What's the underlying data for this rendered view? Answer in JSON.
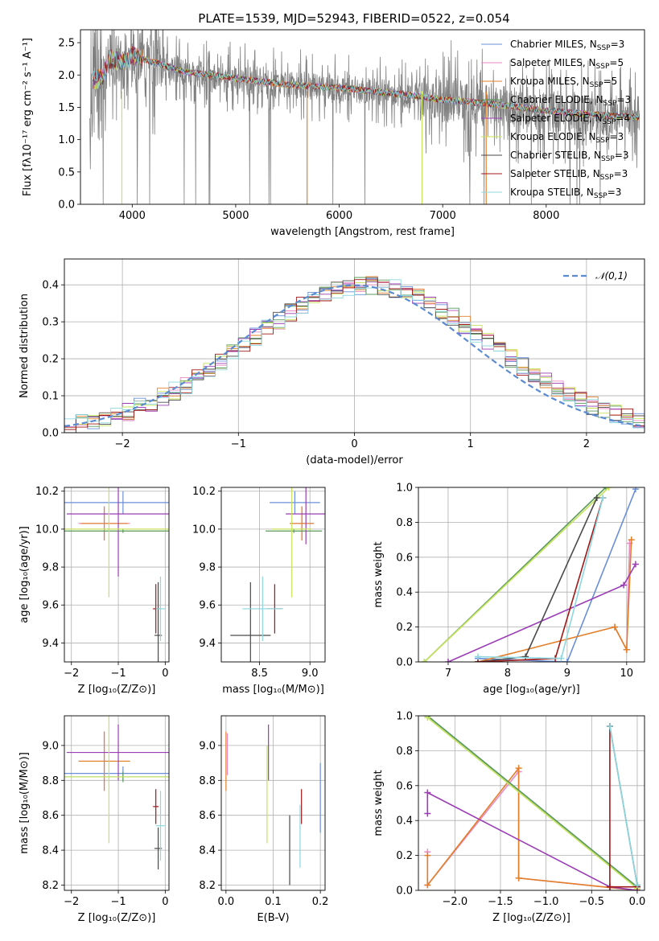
{
  "title": "PLATE=1539, MJD=52943, FIBERID=0522, z=0.054",
  "colors": {
    "Chabrier MILES": "#6a8fd8",
    "Salpeter MILES": "#e88ac7",
    "Kroupa MILES": "#e2802a",
    "Chabrier ELODIE": "#5a9a5a",
    "Salpeter ELODIE": "#9b3db5",
    "Kroupa ELODIE": "#c6e35a",
    "Chabrier STELIB": "#4a4a4a",
    "Salpeter STELIB": "#a01818",
    "Kroupa STELIB": "#8cd8e0",
    "data": "#808080",
    "normal": "#5b8bd0"
  },
  "chart_data": [
    {
      "id": "spectrum",
      "type": "line",
      "xlabel": "wavelength [Angstrom, rest frame]",
      "ylabel": "Flux [fλ10⁻¹⁷ erg cm⁻² s⁻¹ A⁻¹]",
      "xlim": [
        3500,
        8950
      ],
      "ylim": [
        0,
        2.7
      ],
      "xticks": [
        "4000",
        "5000",
        "6000",
        "7000",
        "8000"
      ],
      "yticks": [
        "0.0",
        "0.5",
        "1.0",
        "1.5",
        "2.0",
        "2.5"
      ],
      "legend": "right",
      "series": [
        {
          "name": "Chabrier MILES, N",
          "sub": "SSP",
          "suffix": "=3"
        },
        {
          "name": "Salpeter MILES, N",
          "sub": "SSP",
          "suffix": "=5"
        },
        {
          "name": "Kroupa MILES, N",
          "sub": "SSP",
          "suffix": "=5"
        },
        {
          "name": "Chabrier ELODIE, N",
          "sub": "SSP",
          "suffix": "=3"
        },
        {
          "name": "Salpeter ELODIE, N",
          "sub": "SSP",
          "suffix": "=4"
        },
        {
          "name": "Kroupa ELODIE, N",
          "sub": "SSP",
          "suffix": "=3"
        },
        {
          "name": "Chabrier STELIB, N",
          "sub": "SSP",
          "suffix": "=3"
        },
        {
          "name": "Salpeter STELIB, N",
          "sub": "SSP",
          "suffix": "=3"
        },
        {
          "name": "Kroupa STELIB, N",
          "sub": "SSP",
          "suffix": "=3"
        }
      ],
      "continuum": [
        [
          3600,
          1.9
        ],
        [
          3700,
          1.95
        ],
        [
          3800,
          2.25
        ],
        [
          3900,
          2.2
        ],
        [
          4000,
          2.3
        ],
        [
          4200,
          2.2
        ],
        [
          4500,
          2.05
        ],
        [
          5000,
          1.95
        ],
        [
          5500,
          1.85
        ],
        [
          6000,
          1.8
        ],
        [
          6500,
          1.72
        ],
        [
          7000,
          1.62
        ],
        [
          7500,
          1.55
        ],
        [
          8000,
          1.45
        ],
        [
          8500,
          1.38
        ],
        [
          8900,
          1.35
        ]
      ]
    },
    {
      "id": "residuals",
      "type": "bar",
      "xlabel": "(data-model)/error",
      "ylabel": "Normed distribution",
      "xlim": [
        -2.5,
        2.5
      ],
      "ylim": [
        0,
        0.47
      ],
      "xticks": [
        "−2",
        "−1",
        "0",
        "1",
        "2"
      ],
      "yticks": [
        "0.0",
        "0.1",
        "0.2",
        "0.3",
        "0.4"
      ],
      "legend_label": "𝒩(0,1)"
    },
    {
      "id": "age_vs_Z",
      "type": "scatter",
      "xlabel": "Z [log₁₀(Z/Z⊙)]",
      "ylabel": "age  [log₁₀(age/yr)]",
      "xlim": [
        -2.15,
        0.08
      ],
      "ylim": [
        9.3,
        10.22
      ],
      "xticks": [
        "−2",
        "−1",
        "0"
      ],
      "yticks": [
        "9.4",
        "9.6",
        "9.8",
        "10.0",
        "10.2"
      ]
    },
    {
      "id": "age_vs_mass",
      "type": "scatter",
      "xlabel": "mass [log₁₀(M/M⊙)]",
      "xlim": [
        8.12,
        9.15
      ],
      "ylim": [
        9.3,
        10.22
      ],
      "xticks": [
        "8.5",
        "9.0"
      ],
      "yticks": [
        "9.4",
        "9.6",
        "9.8",
        "10.0",
        "10.2"
      ]
    },
    {
      "id": "weight_vs_age",
      "type": "line",
      "xlabel": "age  [log₁₀(age/yr)]",
      "ylabel": "mass weight",
      "xlim": [
        6.5,
        10.3
      ],
      "ylim": [
        0,
        1.0
      ],
      "xticks": [
        "7",
        "8",
        "9",
        "10"
      ],
      "yticks": [
        "0.0",
        "0.2",
        "0.4",
        "0.6",
        "0.8",
        "1.0"
      ]
    },
    {
      "id": "mass_vs_Z",
      "type": "scatter",
      "xlabel": "Z [log₁₀(Z/Z⊙)]",
      "ylabel": "mass [log₁₀(M/M⊙)]",
      "xlim": [
        -2.15,
        0.08
      ],
      "ylim": [
        8.17,
        9.17
      ],
      "xticks": [
        "−2",
        "−1",
        "0"
      ],
      "yticks": [
        "8.2",
        "8.4",
        "8.6",
        "8.8",
        "9.0"
      ]
    },
    {
      "id": "mass_vs_ebv",
      "type": "scatter",
      "xlabel": "E(B-V)",
      "xlim": [
        -0.01,
        0.21
      ],
      "ylim": [
        8.17,
        9.17
      ],
      "xticks": [
        "0.0",
        "0.1",
        "0.2"
      ],
      "yticks": [
        "8.2",
        "8.4",
        "8.6",
        "8.8",
        "9.0"
      ]
    },
    {
      "id": "weight_vs_Z",
      "type": "line",
      "xlabel": "Z [log₁₀(Z/Z⊙)]",
      "ylabel": "mass weight",
      "xlim": [
        -2.4,
        0.08
      ],
      "ylim": [
        0,
        1.0
      ],
      "xticks": [
        "−2.0",
        "−1.5",
        "−1.0",
        "−0.5",
        "0.0"
      ],
      "yticks": [
        "0.0",
        "0.2",
        "0.4",
        "0.6",
        "0.8",
        "1.0"
      ]
    }
  ]
}
